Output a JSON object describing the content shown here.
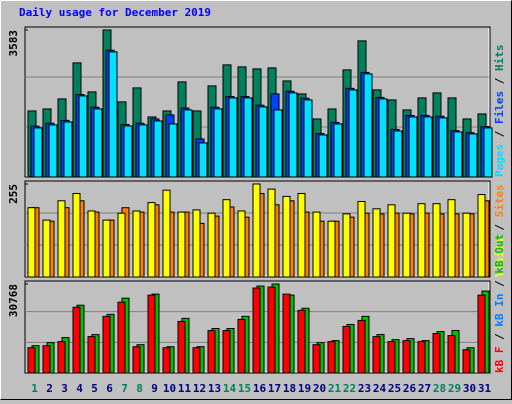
{
  "title": "Daily usage for December 2019",
  "legend_separator": " / ",
  "chart_data": [
    {
      "type": "bar",
      "ylim": [
        0,
        3583
      ],
      "yticks": [
        3583
      ],
      "series": [
        {
          "name": "Hits",
          "color": "#00805c",
          "values": [
            1610,
            1659,
            1903,
            2782,
            2074,
            3583,
            1830,
            2172,
            1464,
            1610,
            2318,
            1610,
            2220,
            2733,
            2684,
            2635,
            2660,
            2342,
            2025,
            1415,
            1659,
            2611,
            3318,
            2123,
            1879,
            1635,
            1928,
            2050,
            1928,
            1415,
            1537
          ]
        },
        {
          "name": "Files",
          "color": "#0040ff",
          "values": [
            1240,
            1310,
            1380,
            2010,
            1700,
            3090,
            1280,
            1310,
            1415,
            1513,
            1680,
            927,
            1700,
            1960,
            1960,
            1750,
            2025,
            2090,
            1920,
            1060,
            1330,
            2160,
            2550,
            1940,
            1160,
            1500,
            1500,
            1480,
            1130,
            1080,
            1230
          ]
        },
        {
          "name": "Pages",
          "color": "#00e0ff",
          "values": [
            1196,
            1269,
            1342,
            1976,
            1659,
            3050,
            1244,
            1269,
            1366,
            1293,
            1635,
            830,
            1659,
            1928,
            1928,
            1708,
            1635,
            2050,
            1879,
            1025,
            1293,
            2123,
            2513,
            1903,
            1122,
            1464,
            1464,
            1440,
            1098,
            1049,
            1196
          ]
        }
      ]
    },
    {
      "type": "bar",
      "ylim": [
        0,
        255
      ],
      "yticks": [
        255
      ],
      "series": [
        {
          "name": "Sites",
          "color": "#ff8000",
          "values": [
            190,
            153,
            190,
            209,
            178,
            156,
            190,
            178,
            198,
            178,
            178,
            147,
            167,
            192,
            164,
            229,
            198,
            209,
            178,
            153,
            153,
            164,
            175,
            173,
            175,
            173,
            175,
            173,
            173,
            173,
            209
          ]
        },
        {
          "name": "Visits",
          "color": "#ffff00",
          "values": [
            190,
            156,
            209,
            229,
            181,
            156,
            175,
            181,
            204,
            238,
            178,
            184,
            175,
            212,
            181,
            255,
            241,
            221,
            229,
            178,
            153,
            173,
            207,
            187,
            198,
            175,
            201,
            201,
            212,
            175,
            226
          ]
        }
      ]
    },
    {
      "type": "bar",
      "ylim": [
        0,
        30768
      ],
      "yticks": [
        30768
      ],
      "categories": [
        "1",
        "2",
        "3",
        "4",
        "5",
        "6",
        "7",
        "8",
        "9",
        "10",
        "11",
        "12",
        "13",
        "14",
        "15",
        "16",
        "17",
        "18",
        "19",
        "20",
        "21",
        "22",
        "23",
        "24",
        "25",
        "26",
        "27",
        "28",
        "29",
        "30",
        "31"
      ],
      "category_colors": [
        "#00805c",
        "#000080",
        "#000080",
        "#000080",
        "#000080",
        "#000080",
        "#00805c",
        "#00805c",
        "#000080",
        "#000080",
        "#000080",
        "#000080",
        "#000080",
        "#00805c",
        "#00805c",
        "#000080",
        "#000080",
        "#000080",
        "#000080",
        "#000080",
        "#00805c",
        "#00805c",
        "#000080",
        "#000080",
        "#000080",
        "#000080",
        "#000080",
        "#00805c",
        "#00805c",
        "#000080",
        "#000080"
      ],
      "series": [
        {
          "name": "kB Out",
          "color": "#00c000",
          "values": [
            9439,
            10488,
            12236,
            23423,
            13285,
            20277,
            25870,
            9789,
            27269,
            9090,
            18878,
            9090,
            15382,
            15382,
            19578,
            30066,
            30768,
            26919,
            22374,
            10488,
            11187,
            16781,
            19578,
            13285,
            11537,
            11886,
            11187,
            14334,
            14683,
            8740,
            28318
          ]
        },
        {
          "name": "kB In",
          "color": "#0080ff",
          "values": [
            null,
            null,
            null,
            null,
            null,
            null,
            null,
            null,
            null,
            null,
            null,
            null,
            null,
            null,
            null,
            null,
            null,
            null,
            null,
            null,
            null,
            null,
            null,
            null,
            null,
            null,
            null,
            null,
            null,
            null,
            null
          ]
        },
        {
          "name": "kB F",
          "color": "#ff0000",
          "values": [
            8740,
            9439,
            10838,
            22724,
            12586,
            19578,
            24472,
            9090,
            26919,
            8740,
            17830,
            8740,
            14683,
            14683,
            18529,
            29366,
            29716,
            27269,
            21675,
            9789,
            10838,
            16082,
            18179,
            12586,
            10838,
            11187,
            10838,
            13634,
            12935,
            8041,
            26919
          ]
        }
      ]
    }
  ]
}
